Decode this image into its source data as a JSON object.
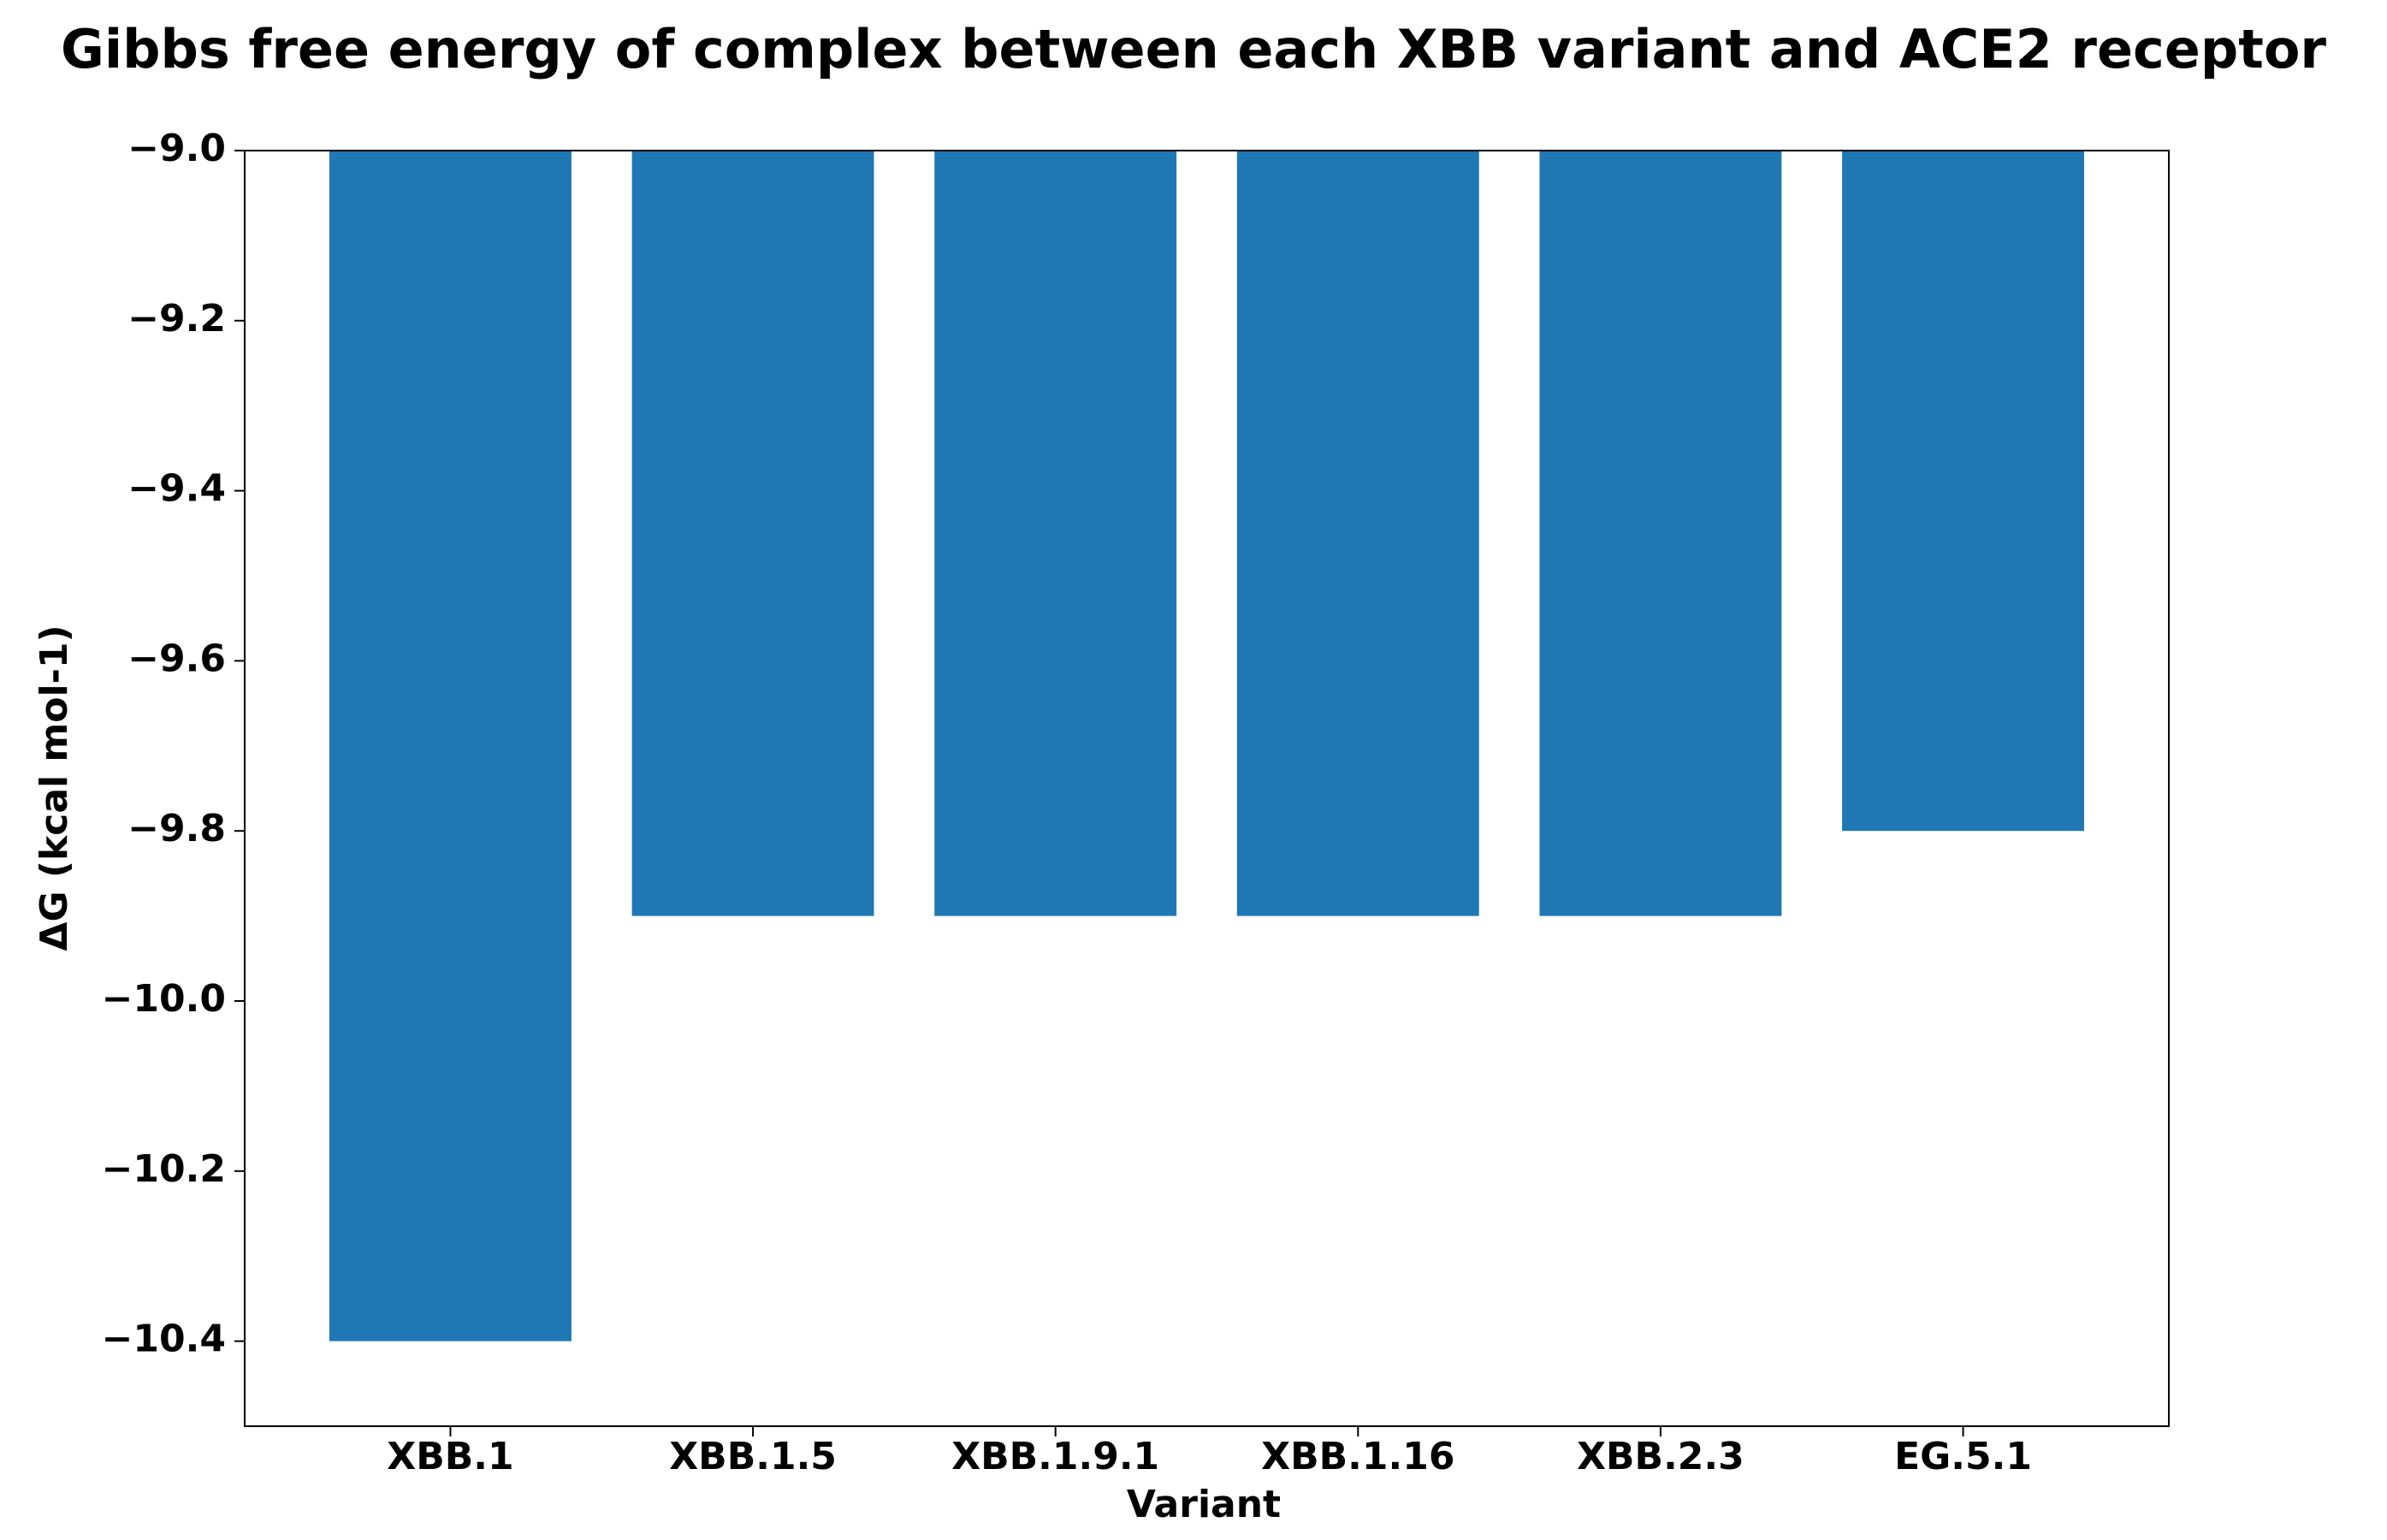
{
  "chart_data": {
    "type": "bar",
    "title": "Gibbs free energy of complex between each XBB variant and ACE2 receptor",
    "x_label": "Variant",
    "y_label": "ΔG (kcal mol-1)",
    "categories": [
      "XBB.1",
      "XBB.1.5",
      "XBB.1.9.1",
      "XBB.1.16",
      "XBB.2.3",
      "EG.5.1"
    ],
    "values": [
      -10.4,
      -9.9,
      -9.9,
      -9.9,
      -9.9,
      -9.8
    ],
    "color": "#1f77b4",
    "ylim": [
      -10.5,
      -9.0
    ],
    "yticks": [
      {
        "value": -10.4,
        "label": "−10.4"
      },
      {
        "value": -10.2,
        "label": "−10.2"
      },
      {
        "value": -10.0,
        "label": "−10.0"
      },
      {
        "value": -9.8,
        "label": "−9.8"
      },
      {
        "value": -9.6,
        "label": "−9.6"
      },
      {
        "value": -9.4,
        "label": "−9.4"
      },
      {
        "value": -9.2,
        "label": "−9.2"
      },
      {
        "value": -9.0,
        "label": "−9.0"
      }
    ],
    "grid": false
  }
}
